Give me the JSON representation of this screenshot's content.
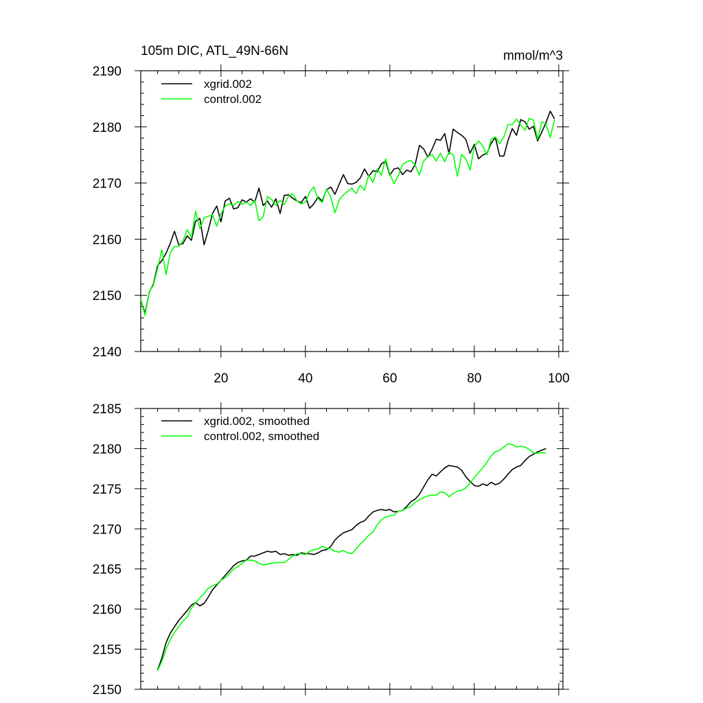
{
  "chart_data": [
    {
      "type": "line",
      "title": "105m DIC, ATL_49N-66N",
      "units": "mmol/m^3",
      "xlim": [
        1,
        101
      ],
      "ylim": [
        2140,
        2190
      ],
      "xticks": [
        20,
        40,
        60,
        80,
        100
      ],
      "yticks": [
        2140,
        2150,
        2160,
        2170,
        2180,
        2190
      ],
      "x_tick_labels": [
        "20",
        "40",
        "60",
        "80",
        "100"
      ],
      "y_tick_labels": [
        "2140",
        "2150",
        "2160",
        "2170",
        "2180",
        "2190"
      ],
      "legend_position": "top-left",
      "series": [
        {
          "name": "xgrid.002",
          "color": "#000000",
          "x_start": 1,
          "values": [
            2149.2,
            2146.8,
            2150.5,
            2152.0,
            2155.3,
            2156.2,
            2157.5,
            2159.3,
            2161.4,
            2159.0,
            2159.2,
            2160.6,
            2159.8,
            2163.2,
            2163.7,
            2159.0,
            2161.6,
            2164.6,
            2165.9,
            2163.1,
            2166.8,
            2167.3,
            2165.4,
            2165.6,
            2167.0,
            2166.6,
            2167.2,
            2166.6,
            2169.1,
            2166.0,
            2166.8,
            2165.7,
            2167.2,
            2164.6,
            2167.8,
            2167.9,
            2167.3,
            2166.8,
            2166.5,
            2167.6,
            2165.5,
            2166.3,
            2167.5,
            2166.8,
            2168.8,
            2169.3,
            2168.0,
            2169.8,
            2171.5,
            2169.9,
            2169.8,
            2170.1,
            2170.9,
            2172.5,
            2171.2,
            2172.2,
            2172.0,
            2173.4,
            2173.9,
            2171.4,
            2172.5,
            2172.7,
            2171.5,
            2172.3,
            2172.0,
            2173.3,
            2176.7,
            2176.1,
            2174.6,
            2176.0,
            2177.8,
            2177.6,
            2178.8,
            2175.2,
            2179.6,
            2179.0,
            2178.5,
            2177.8,
            2175.3,
            2176.9,
            2174.3,
            2175.0,
            2175.3,
            2177.1,
            2178.1,
            2174.8,
            2174.8,
            2177.6,
            2179.7,
            2178.5,
            2181.3,
            2180.9,
            2179.6,
            2180.1,
            2177.5,
            2179.1,
            2180.8,
            2182.8,
            2181.4
          ]
        },
        {
          "name": "control.002",
          "color": "#00ff00",
          "x_start": 1,
          "values": [
            2149.4,
            2146.4,
            2150.6,
            2151.8,
            2154.8,
            2158.1,
            2153.7,
            2157.6,
            2158.7,
            2158.7,
            2159.7,
            2161.7,
            2160.3,
            2165.0,
            2161.9,
            2163.8,
            2164.1,
            2164.3,
            2162.3,
            2164.5,
            2165.9,
            2166.3,
            2166.0,
            2166.7,
            2166.2,
            2166.6,
            2166.0,
            2166.9,
            2163.3,
            2164.0,
            2167.6,
            2167.1,
            2166.0,
            2166.9,
            2166.2,
            2167.7,
            2168.1,
            2166.8,
            2166.3,
            2166.6,
            2168.4,
            2169.3,
            2167.2,
            2166.5,
            2168.9,
            2167.5,
            2164.7,
            2167.0,
            2167.9,
            2168.5,
            2169.1,
            2168.1,
            2169.6,
            2168.7,
            2171.4,
            2170.1,
            2172.5,
            2171.4,
            2174.3,
            2171.6,
            2169.9,
            2171.3,
            2173.3,
            2173.8,
            2174.0,
            2173.2,
            2171.4,
            2173.9,
            2174.7,
            2175.1,
            2173.9,
            2175.3,
            2173.8,
            2175.5,
            2175.0,
            2171.2,
            2175.1,
            2174.3,
            2172.3,
            2176.5,
            2177.5,
            2176.6,
            2175.0,
            2177.8,
            2178.2,
            2177.0,
            2178.2,
            2180.4,
            2180.4,
            2181.4,
            2180.3,
            2179.4,
            2181.5,
            2181.2,
            2177.8,
            2180.9,
            2180.4,
            2178.1,
            2181.3
          ]
        }
      ],
      "legend": [
        "xgrid.002",
        "control.002"
      ]
    },
    {
      "type": "line",
      "title": "",
      "xlim": [
        1,
        101
      ],
      "ylim": [
        2150,
        2185
      ],
      "xticks": [
        20,
        40,
        60,
        80,
        100
      ],
      "yticks": [
        2150,
        2155,
        2160,
        2165,
        2170,
        2175,
        2180,
        2185
      ],
      "y_tick_labels": [
        "2150",
        "2155",
        "2160",
        "2165",
        "2170",
        "2175",
        "2180",
        "2185"
      ],
      "legend_position": "top-left",
      "series": [
        {
          "name": "xgrid.002, smoothed",
          "color": "#000000",
          "x_start": 5,
          "values": [
            2152.4,
            2153.9,
            2155.8,
            2157.0,
            2157.8,
            2158.6,
            2159.2,
            2159.8,
            2160.5,
            2160.8,
            2160.4,
            2160.7,
            2161.5,
            2162.4,
            2163.0,
            2163.6,
            2164.2,
            2164.8,
            2165.4,
            2165.8,
            2166.0,
            2166.1,
            2166.6,
            2166.6,
            2166.8,
            2167.0,
            2167.2,
            2167.1,
            2167.2,
            2166.8,
            2166.9,
            2166.7,
            2166.8,
            2166.7,
            2167.0,
            2166.9,
            2166.9,
            2166.8,
            2167.0,
            2167.3,
            2167.4,
            2167.8,
            2168.6,
            2169.1,
            2169.5,
            2169.7,
            2169.9,
            2170.4,
            2170.8,
            2171.0,
            2171.6,
            2172.1,
            2172.3,
            2172.4,
            2172.3,
            2172.4,
            2172.1,
            2172.2,
            2172.3,
            2172.8,
            2173.4,
            2173.7,
            2174.3,
            2175.2,
            2176.1,
            2176.8,
            2176.6,
            2177.1,
            2177.6,
            2177.9,
            2177.8,
            2177.7,
            2177.3,
            2176.5,
            2175.9,
            2175.4,
            2175.3,
            2175.6,
            2175.4,
            2175.8,
            2175.5,
            2175.7,
            2176.2,
            2176.8,
            2177.4,
            2177.7,
            2177.9,
            2178.5,
            2179.0,
            2179.3,
            2179.6,
            2179.8,
            2180.0
          ]
        },
        {
          "name": "control.002, smoothed",
          "color": "#00ff00",
          "x_start": 5,
          "values": [
            2152.3,
            2153.5,
            2155.0,
            2156.2,
            2157.1,
            2157.8,
            2158.5,
            2159.0,
            2160.1,
            2160.8,
            2161.4,
            2161.9,
            2162.6,
            2162.9,
            2163.1,
            2163.6,
            2163.9,
            2164.4,
            2165.0,
            2165.3,
            2165.7,
            2166.1,
            2166.1,
            2166.0,
            2165.7,
            2165.5,
            2165.6,
            2165.7,
            2165.8,
            2165.8,
            2165.8,
            2166.2,
            2166.6,
            2166.9,
            2166.9,
            2166.8,
            2167.2,
            2167.4,
            2167.5,
            2167.8,
            2167.6,
            2167.5,
            2167.2,
            2167.1,
            2167.3,
            2167.0,
            2166.9,
            2167.5,
            2168.1,
            2168.6,
            2169.2,
            2169.6,
            2170.5,
            2171.1,
            2171.5,
            2171.6,
            2171.7,
            2172.2,
            2172.3,
            2172.6,
            2172.8,
            2173.3,
            2173.6,
            2173.9,
            2174.1,
            2174.2,
            2174.2,
            2174.6,
            2174.5,
            2174.0,
            2174.4,
            2174.7,
            2174.8,
            2175.1,
            2175.7,
            2176.4,
            2177.0,
            2177.6,
            2178.3,
            2179.1,
            2179.6,
            2179.8,
            2180.2,
            2180.6,
            2180.5,
            2180.2,
            2180.3,
            2180.2,
            2179.9,
            2179.5,
            2179.4,
            2179.5,
            2179.4
          ]
        }
      ],
      "legend": [
        "xgrid.002, smoothed",
        "control.002, smoothed"
      ]
    }
  ]
}
